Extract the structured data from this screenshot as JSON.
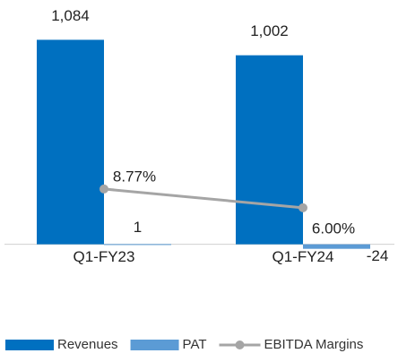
{
  "chart_data": {
    "type": "bar",
    "categories": [
      "Q1-FY23",
      "Q1-FY24"
    ],
    "series": [
      {
        "name": "Revenues",
        "type": "bar",
        "color": "#0070c0",
        "values": [
          1084,
          1002
        ],
        "value_labels": [
          "1,084",
          "1,002"
        ]
      },
      {
        "name": "PAT",
        "type": "bar",
        "color": "#5b9bd5",
        "values": [
          1,
          -24
        ]
      },
      {
        "name": "EBITDA Margins",
        "type": "line",
        "axis": "y2",
        "color": "#a5a5a5",
        "values": [
          8.77,
          6.0
        ],
        "value_labels": [
          "8.77%",
          "6.00%"
        ]
      }
    ],
    "ylim": [
      -130,
      1200
    ],
    "y2lim": [
      -3,
      34
    ],
    "legend": "bottom"
  }
}
